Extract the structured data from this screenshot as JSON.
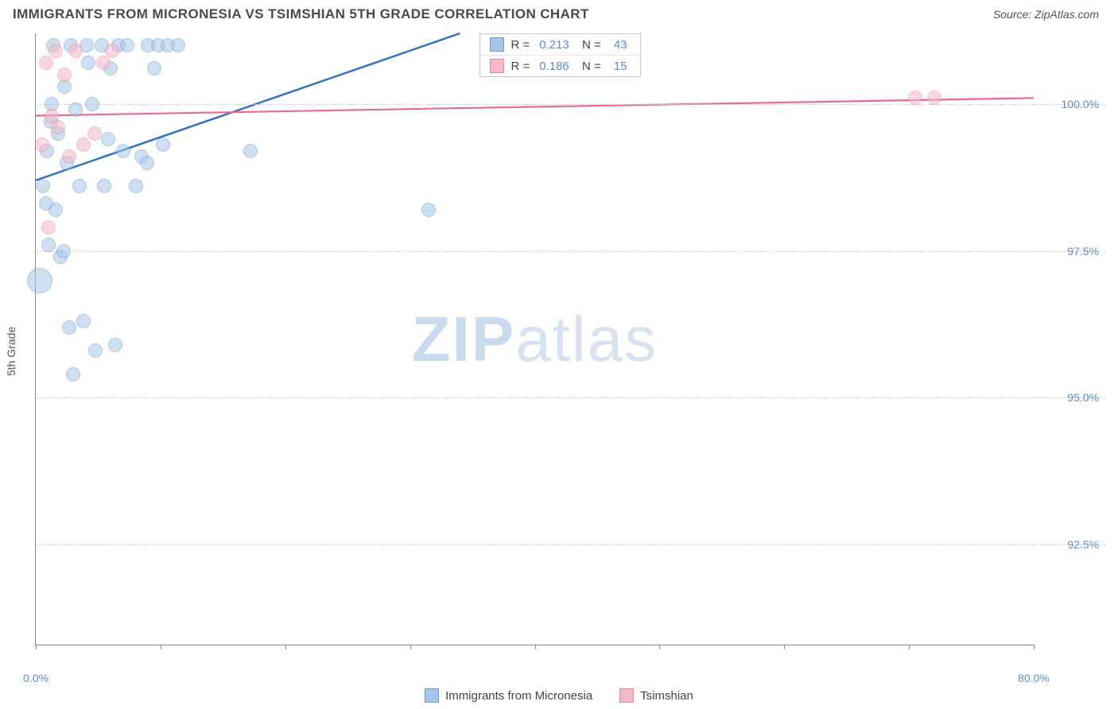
{
  "header": {
    "title": "IMMIGRANTS FROM MICRONESIA VS TSIMSHIAN 5TH GRADE CORRELATION CHART",
    "source": "Source: ZipAtlas.com"
  },
  "watermark": {
    "bold": "ZIP",
    "light": "atlas"
  },
  "chart": {
    "type": "scatter",
    "y_axis_label": "5th Grade",
    "background_color": "#ffffff",
    "grid_color": "#d0d0d0",
    "axis_color": "#888888",
    "xlim": [
      0,
      80
    ],
    "ylim": [
      90.8,
      101.2
    ],
    "x_ticks": [
      0,
      10,
      20,
      30,
      40,
      50,
      60,
      70,
      80
    ],
    "x_tick_labels": {
      "0": "0.0%",
      "80": "80.0%"
    },
    "y_ticks": [
      92.5,
      95.0,
      97.5,
      100.0
    ],
    "y_tick_labels": [
      "92.5%",
      "95.0%",
      "97.5%",
      "100.0%"
    ],
    "series": [
      {
        "name": "Immigrants from Micronesia",
        "fill": "#a8c6e8",
        "stroke": "#6a9bd1",
        "fill_opacity": 0.55,
        "marker_r": 9,
        "trend_color": "#2e6fc4",
        "trend_width": 2.4,
        "trend": {
          "x1": 0,
          "y1": 98.7,
          "x2": 34,
          "y2": 101.2
        },
        "R": "0.213",
        "N": "43",
        "points": [
          {
            "x": 0.3,
            "y": 97.0,
            "r": 16
          },
          {
            "x": 0.6,
            "y": 98.6
          },
          {
            "x": 0.8,
            "y": 98.3
          },
          {
            "x": 0.9,
            "y": 99.2
          },
          {
            "x": 1.0,
            "y": 97.6
          },
          {
            "x": 1.2,
            "y": 99.7
          },
          {
            "x": 1.3,
            "y": 100.0
          },
          {
            "x": 1.4,
            "y": 101.0
          },
          {
            "x": 1.6,
            "y": 98.2
          },
          {
            "x": 1.8,
            "y": 99.5
          },
          {
            "x": 2.0,
            "y": 97.4
          },
          {
            "x": 2.2,
            "y": 97.5
          },
          {
            "x": 2.3,
            "y": 100.3
          },
          {
            "x": 2.5,
            "y": 99.0
          },
          {
            "x": 2.7,
            "y": 96.2
          },
          {
            "x": 2.8,
            "y": 101.0
          },
          {
            "x": 3.0,
            "y": 95.4
          },
          {
            "x": 3.2,
            "y": 99.9
          },
          {
            "x": 3.5,
            "y": 98.6
          },
          {
            "x": 3.8,
            "y": 96.3
          },
          {
            "x": 4.1,
            "y": 101.0
          },
          {
            "x": 4.2,
            "y": 100.7
          },
          {
            "x": 4.5,
            "y": 100.0
          },
          {
            "x": 4.8,
            "y": 95.8
          },
          {
            "x": 5.3,
            "y": 101.0
          },
          {
            "x": 5.5,
            "y": 98.6
          },
          {
            "x": 5.8,
            "y": 99.4
          },
          {
            "x": 6.0,
            "y": 100.6
          },
          {
            "x": 6.4,
            "y": 95.9
          },
          {
            "x": 6.6,
            "y": 101.0
          },
          {
            "x": 7.0,
            "y": 99.2
          },
          {
            "x": 7.3,
            "y": 101.0
          },
          {
            "x": 8.0,
            "y": 98.6
          },
          {
            "x": 8.5,
            "y": 99.1
          },
          {
            "x": 8.9,
            "y": 99.0
          },
          {
            "x": 9.0,
            "y": 101.0
          },
          {
            "x": 9.5,
            "y": 100.6
          },
          {
            "x": 9.8,
            "y": 101.0
          },
          {
            "x": 10.2,
            "y": 99.3
          },
          {
            "x": 10.6,
            "y": 101.0
          },
          {
            "x": 11.4,
            "y": 101.0
          },
          {
            "x": 17.2,
            "y": 99.2
          },
          {
            "x": 31.5,
            "y": 98.2
          }
        ]
      },
      {
        "name": "Tsimshian",
        "fill": "#f4b8c8",
        "stroke": "#e58aa3",
        "fill_opacity": 0.55,
        "marker_r": 9,
        "trend_color": "#e86b8f",
        "trend_width": 2.2,
        "trend": {
          "x1": 0,
          "y1": 99.8,
          "x2": 80,
          "y2": 100.1
        },
        "R": "0.186",
        "N": "15",
        "points": [
          {
            "x": 0.5,
            "y": 99.3
          },
          {
            "x": 0.8,
            "y": 100.7
          },
          {
            "x": 1.0,
            "y": 97.9
          },
          {
            "x": 1.3,
            "y": 99.8
          },
          {
            "x": 1.6,
            "y": 100.9
          },
          {
            "x": 1.8,
            "y": 99.6
          },
          {
            "x": 2.3,
            "y": 100.5
          },
          {
            "x": 2.7,
            "y": 99.1
          },
          {
            "x": 3.2,
            "y": 100.9
          },
          {
            "x": 3.8,
            "y": 99.3
          },
          {
            "x": 4.7,
            "y": 99.5
          },
          {
            "x": 5.4,
            "y": 100.7
          },
          {
            "x": 6.1,
            "y": 100.9
          },
          {
            "x": 70.5,
            "y": 100.1
          },
          {
            "x": 72.0,
            "y": 100.1
          }
        ]
      }
    ],
    "legend_box": {
      "left_pct": 44.5,
      "top_pct": 0
    },
    "bottom_legend": [
      {
        "label": "Immigrants from Micronesia",
        "fill": "#a8c6e8",
        "stroke": "#6a9bd1"
      },
      {
        "label": "Tsimshian",
        "fill": "#f4b8c8",
        "stroke": "#e58aa3"
      }
    ]
  }
}
